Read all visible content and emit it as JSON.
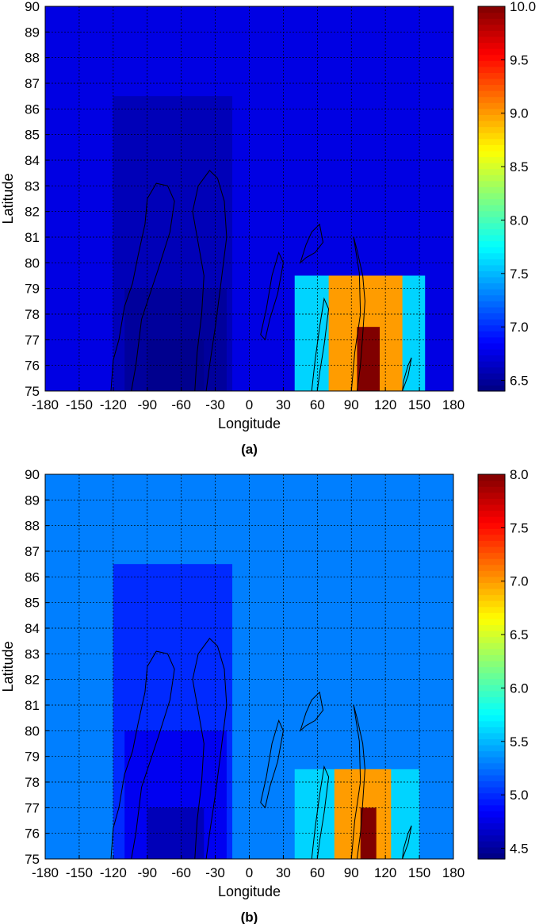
{
  "chart_data": [
    {
      "type": "heatmap",
      "caption": "(a)",
      "xlabel": "Longitude",
      "ylabel": "Latitude",
      "xlim": [
        -180,
        180
      ],
      "ylim": [
        75,
        90
      ],
      "xticks": [
        -180,
        -150,
        -120,
        -90,
        -60,
        -30,
        0,
        30,
        60,
        90,
        120,
        150,
        180
      ],
      "yticks": [
        75,
        76,
        77,
        78,
        79,
        80,
        81,
        82,
        83,
        84,
        85,
        86,
        87,
        88,
        89,
        90
      ],
      "xtick_labels": [
        "-180",
        "-150",
        "-120",
        "-90",
        "-60",
        "-30",
        "0",
        "30",
        "60",
        "90",
        "120",
        "150",
        "180"
      ],
      "ytick_labels": [
        "75",
        "76",
        "77",
        "78",
        "79",
        "80",
        "81",
        "82",
        "83",
        "84",
        "85",
        "86",
        "87",
        "88",
        "89",
        "90"
      ],
      "grid": true,
      "colormap": "jet",
      "clim": [
        6.4,
        10.0
      ],
      "colorbar_ticks": [
        "6.5",
        "7.0",
        "7.5",
        "8.0",
        "8.5",
        "9.0",
        "9.5",
        "10.0"
      ],
      "colorbar_values": [
        6.5,
        7.0,
        7.5,
        8.0,
        8.5,
        9.0,
        9.5,
        10.0
      ],
      "background_value": 6.75,
      "regions": [
        {
          "lon": [
            -120,
            -15
          ],
          "lat": [
            75,
            86.5
          ],
          "value": 6.6
        },
        {
          "lon": [
            -110,
            -20
          ],
          "lat": [
            75,
            79
          ],
          "value": 6.5
        },
        {
          "lon": [
            -90,
            -40
          ],
          "lat": [
            75,
            77
          ],
          "value": 6.45
        },
        {
          "lon": [
            40,
            155
          ],
          "lat": [
            75,
            79.5
          ],
          "value": 7.6
        },
        {
          "lon": [
            70,
            135
          ],
          "lat": [
            75,
            79.5
          ],
          "value": 9.0
        },
        {
          "lon": [
            95,
            115
          ],
          "lat": [
            75,
            77.5
          ],
          "value": 10.0
        }
      ]
    },
    {
      "type": "heatmap",
      "caption": "(b)",
      "xlabel": "Longitude",
      "ylabel": "Latitude",
      "xlim": [
        -180,
        180
      ],
      "ylim": [
        75,
        90
      ],
      "xticks": [
        -180,
        -150,
        -120,
        -90,
        -60,
        -30,
        0,
        30,
        60,
        90,
        120,
        150,
        180
      ],
      "yticks": [
        75,
        76,
        77,
        78,
        79,
        80,
        81,
        82,
        83,
        84,
        85,
        86,
        87,
        88,
        89,
        90
      ],
      "xtick_labels": [
        "-180",
        "-150",
        "-120",
        "-90",
        "-60",
        "-30",
        "0",
        "30",
        "60",
        "90",
        "120",
        "150",
        "180"
      ],
      "ytick_labels": [
        "75",
        "76",
        "77",
        "78",
        "79",
        "80",
        "81",
        "82",
        "83",
        "84",
        "85",
        "86",
        "87",
        "88",
        "89",
        "90"
      ],
      "grid": true,
      "colormap": "jet",
      "clim": [
        4.4,
        8.0
      ],
      "colorbar_ticks": [
        "4.5",
        "5.0",
        "5.5",
        "6.0",
        "6.5",
        "7.0",
        "7.5",
        "8.0"
      ],
      "colorbar_values": [
        4.5,
        5.0,
        5.5,
        6.0,
        6.5,
        7.0,
        7.5,
        8.0
      ],
      "background_value": 5.3,
      "regions": [
        {
          "lon": [
            -120,
            -15
          ],
          "lat": [
            75,
            86.5
          ],
          "value": 5.0
        },
        {
          "lon": [
            -110,
            -20
          ],
          "lat": [
            75,
            80
          ],
          "value": 4.8
        },
        {
          "lon": [
            -90,
            -40
          ],
          "lat": [
            75,
            77
          ],
          "value": 4.6
        },
        {
          "lon": [
            40,
            150
          ],
          "lat": [
            75,
            78.5
          ],
          "value": 5.6
        },
        {
          "lon": [
            75,
            125
          ],
          "lat": [
            75,
            78.5
          ],
          "value": 7.0
        },
        {
          "lon": [
            98,
            112
          ],
          "lat": [
            75,
            77
          ],
          "value": 8.0
        }
      ]
    }
  ]
}
